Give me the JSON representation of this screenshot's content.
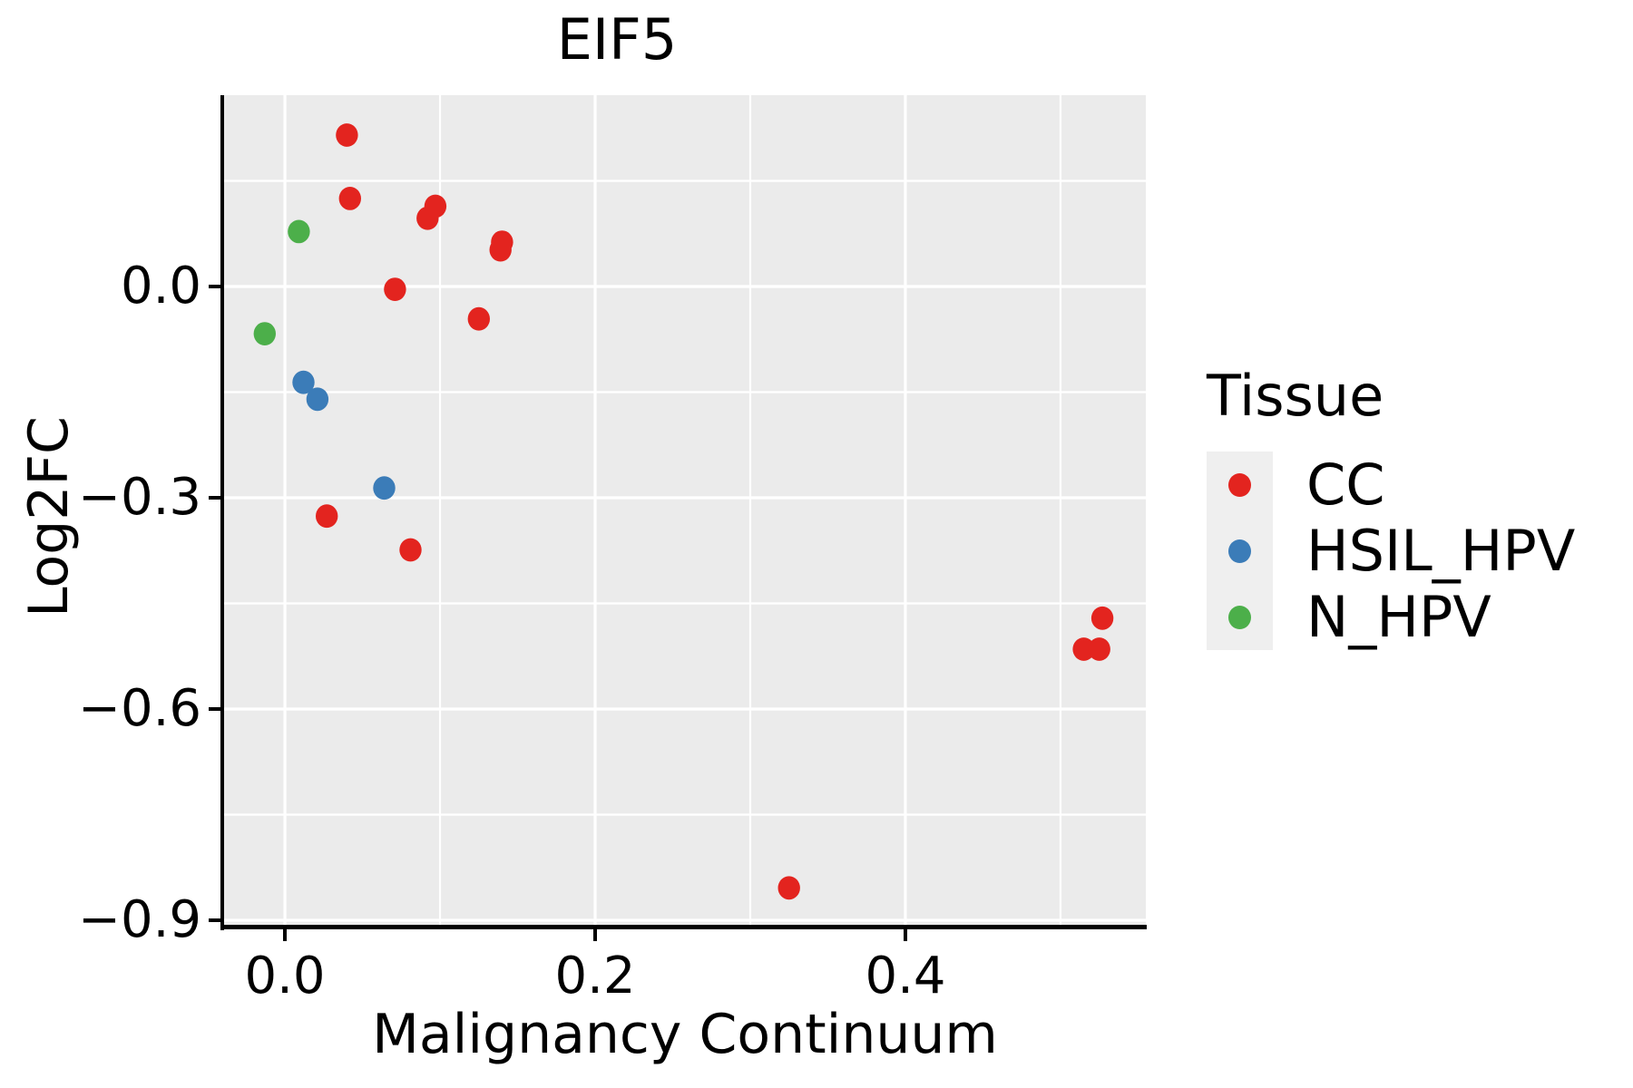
{
  "chart_data": {
    "type": "scatter",
    "title": "EIF5",
    "xlabel": "Malignancy Continuum",
    "ylabel": "Log2FC",
    "xlim": [
      -0.0392,
      0.555
    ],
    "ylim": [
      -0.9064,
      0.2717
    ],
    "grid": "on",
    "panel_bg": "#EBEBEB",
    "grid_color": "#FFFFFF",
    "x_ticks": [
      {
        "value": 0.0,
        "label": "0.0"
      },
      {
        "value": 0.2,
        "label": "0.2"
      },
      {
        "value": 0.4,
        "label": "0.4"
      }
    ],
    "x_minor_ticks": [
      0.1,
      0.3,
      0.5
    ],
    "y_ticks": [
      {
        "value": 0.0,
        "label": "0.0"
      },
      {
        "value": -0.3,
        "label": "−0.3"
      },
      {
        "value": -0.6,
        "label": "−0.6"
      },
      {
        "value": -0.9,
        "label": "−0.9"
      }
    ],
    "y_minor_ticks": [
      0.15,
      -0.15,
      -0.45,
      -0.75
    ],
    "series": [
      {
        "name": "CC",
        "color": "#E3241F",
        "points": [
          [
            0.04,
            0.215
          ],
          [
            0.042,
            0.125
          ],
          [
            0.092,
            0.097
          ],
          [
            0.097,
            0.114
          ],
          [
            0.139,
            0.052
          ],
          [
            0.14,
            0.063
          ],
          [
            0.071,
            -0.004
          ],
          [
            0.125,
            -0.046
          ],
          [
            0.027,
            -0.326
          ],
          [
            0.081,
            -0.374
          ],
          [
            0.527,
            -0.471
          ],
          [
            0.515,
            -0.515
          ],
          [
            0.525,
            -0.515
          ],
          [
            0.325,
            -0.854
          ]
        ]
      },
      {
        "name": "HSIL_HPV",
        "color": "#3B7CB8",
        "points": [
          [
            0.012,
            -0.136
          ],
          [
            0.021,
            -0.16
          ],
          [
            0.064,
            -0.286
          ]
        ]
      },
      {
        "name": "N_HPV",
        "color": "#4CAF4A",
        "points": [
          [
            0.009,
            0.078
          ],
          [
            -0.013,
            -0.067
          ]
        ]
      }
    ],
    "legend": {
      "title": "Tissue",
      "position": "right",
      "entries": [
        {
          "label": "CC",
          "color": "#E3241F"
        },
        {
          "label": "HSIL_HPV",
          "color": "#3B7CB8"
        },
        {
          "label": "N_HPV",
          "color": "#4CAF4A"
        }
      ]
    }
  }
}
